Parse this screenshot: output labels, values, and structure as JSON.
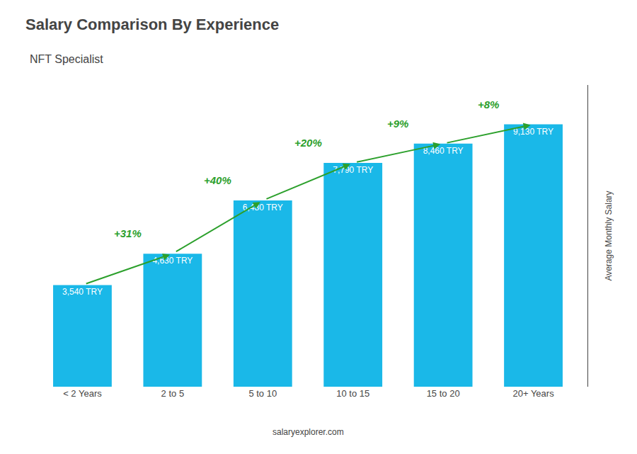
{
  "chart_data": {
    "type": "bar",
    "title": "Salary Comparison By Experience",
    "subtitle": "NFT Specialist",
    "ylabel": "Average Monthly Salary",
    "categories": [
      "< 2 Years",
      "2 to 5",
      "5 to 10",
      "10 to 15",
      "15 to 20",
      "20+ Years"
    ],
    "values": [
      3540,
      4630,
      6480,
      7790,
      8460,
      9130
    ],
    "value_labels": [
      "3,540 TRY",
      "4,630 TRY",
      "6,480 TRY",
      "7,790 TRY",
      "8,460 TRY",
      "9,130 TRY"
    ],
    "data_labels": true,
    "color": "#1ab8e8",
    "ylim": [
      0,
      10500
    ],
    "tick_labels": "x",
    "grid": false,
    "annotations": [
      {
        "text": "+31%",
        "from": "< 2 Years",
        "to": "2 to 5"
      },
      {
        "text": "+40%",
        "from": "2 to 5",
        "to": "5 to 10"
      },
      {
        "text": "+20%",
        "from": "5 to 10",
        "to": "10 to 15"
      },
      {
        "text": "+9%",
        "from": "10 to 15",
        "to": "15 to 20"
      },
      {
        "text": "+8%",
        "from": "15 to 20",
        "to": "20+ Years"
      },
      {
        "text": "salaryexplorer.com"
      }
    ]
  }
}
